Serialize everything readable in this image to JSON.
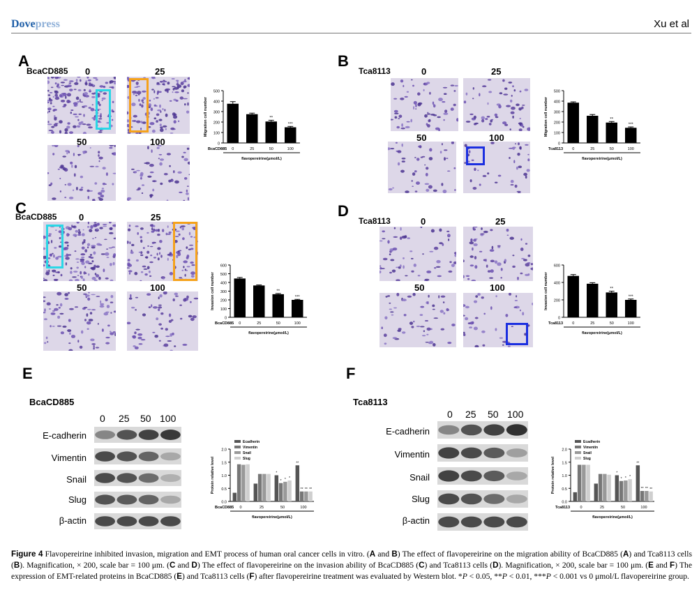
{
  "header": {
    "logo_bold": "Dove",
    "logo_light": "press",
    "author": "Xu et al"
  },
  "panels": [
    {
      "letter": "A",
      "cell_line": "BcaCD885",
      "doses": [
        "0",
        "25",
        "50",
        "100"
      ]
    },
    {
      "letter": "B",
      "cell_line": "Tca8113",
      "doses": [
        "0",
        "25",
        "50",
        "100"
      ]
    },
    {
      "letter": "C",
      "cell_line": "BcaCD885",
      "doses": [
        "0",
        "25",
        "50",
        "100"
      ]
    },
    {
      "letter": "D",
      "cell_line": "Tca8113",
      "doses": [
        "0",
        "25",
        "50",
        "100"
      ]
    },
    {
      "letter": "E",
      "cell_line": "BcaCD885"
    },
    {
      "letter": "F",
      "cell_line": "Tca8113"
    }
  ],
  "western": {
    "doses": [
      "0",
      "25",
      "50",
      "100"
    ],
    "proteins": [
      "E-cadherin",
      "Vimentin",
      "Snail",
      "Slug",
      "β-actin"
    ],
    "intensity_E": [
      [
        0.45,
        0.75,
        0.85,
        0.9
      ],
      [
        0.8,
        0.75,
        0.65,
        0.25
      ],
      [
        0.8,
        0.75,
        0.6,
        0.2
      ],
      [
        0.75,
        0.7,
        0.65,
        0.25
      ],
      [
        0.8,
        0.8,
        0.8,
        0.8
      ]
    ],
    "intensity_F": [
      [
        0.45,
        0.75,
        0.85,
        0.95
      ],
      [
        0.85,
        0.8,
        0.7,
        0.3
      ],
      [
        0.85,
        0.8,
        0.7,
        0.25
      ],
      [
        0.8,
        0.75,
        0.6,
        0.25
      ],
      [
        0.8,
        0.8,
        0.8,
        0.8
      ]
    ]
  },
  "chart_data": [
    {
      "panel": "A",
      "type": "bar",
      "ylabel": "Migration cell number",
      "xlabel": "flavopereirine(μmol/L)",
      "row_label": "BcaCD885",
      "categories": [
        "0",
        "25",
        "50",
        "100"
      ],
      "values": [
        375,
        275,
        205,
        150
      ],
      "errors": [
        20,
        10,
        12,
        8
      ],
      "sig": [
        "",
        "",
        "**",
        "***"
      ],
      "ylim": [
        0,
        500
      ],
      "yticks": [
        0,
        100,
        200,
        300,
        400,
        500
      ]
    },
    {
      "panel": "B",
      "type": "bar",
      "ylabel": "Migration cell number",
      "xlabel": "flavopereirine(μmol/L)",
      "row_label": "Tca8113",
      "categories": [
        "0",
        "25",
        "50",
        "100"
      ],
      "values": [
        385,
        260,
        195,
        145
      ],
      "errors": [
        8,
        12,
        10,
        8
      ],
      "sig": [
        "",
        "",
        "**",
        "***"
      ],
      "ylim": [
        0,
        500
      ],
      "yticks": [
        0,
        100,
        200,
        300,
        400,
        500
      ]
    },
    {
      "panel": "C",
      "type": "bar",
      "ylabel": "Invasion cell number",
      "xlabel": "flavopereirine(μmol/L)",
      "row_label": "BcaCD885",
      "categories": [
        "0",
        "25",
        "50",
        "100"
      ],
      "values": [
        445,
        365,
        265,
        200
      ],
      "errors": [
        12,
        6,
        8,
        6
      ],
      "sig": [
        "",
        "",
        "**",
        "***"
      ],
      "ylim": [
        0,
        600
      ],
      "yticks": [
        0,
        100,
        200,
        300,
        400,
        500,
        600
      ]
    },
    {
      "panel": "D",
      "type": "bar",
      "ylabel": "Invasion cell number",
      "xlabel": "flavopereirine(μmol/L)",
      "row_label": "Tca8113",
      "categories": [
        "0",
        "25",
        "50",
        "100"
      ],
      "values": [
        475,
        385,
        285,
        200
      ],
      "errors": [
        15,
        12,
        15,
        10
      ],
      "sig": [
        "",
        "",
        "**",
        "***"
      ],
      "ylim": [
        0,
        600
      ],
      "yticks": [
        0,
        200,
        400,
        600
      ]
    },
    {
      "panel": "E",
      "type": "bar",
      "ylabel": "Protein relative level",
      "xlabel": "flavopereirine(μmol/L)",
      "row_label": "BcaCD885",
      "categories": [
        "0",
        "25",
        "50",
        "100"
      ],
      "ylim": [
        0,
        2.0
      ],
      "yticks": [
        0,
        0.5,
        1.0,
        1.5,
        2.0
      ],
      "series": [
        {
          "name": "Ecadherin",
          "values": [
            0.33,
            0.68,
            1.0,
            1.38
          ],
          "sig": [
            "",
            "",
            "*",
            "**"
          ]
        },
        {
          "name": "Vimentin",
          "values": [
            1.42,
            1.05,
            0.7,
            0.38
          ],
          "sig": [
            "",
            "",
            "*",
            "**"
          ]
        },
        {
          "name": "Snail",
          "values": [
            1.4,
            1.05,
            0.75,
            0.38
          ],
          "sig": [
            "",
            "",
            "*",
            "**"
          ]
        },
        {
          "name": "Slug",
          "values": [
            1.42,
            1.05,
            0.8,
            0.38
          ],
          "sig": [
            "",
            "",
            "*",
            "**"
          ]
        }
      ]
    },
    {
      "panel": "F",
      "type": "bar",
      "ylabel": "Protein relative level",
      "xlabel": "flavopereirine(μmol/L)",
      "row_label": "Tca8113",
      "categories": [
        "0",
        "25",
        "50",
        "100"
      ],
      "ylim": [
        0,
        2.0
      ],
      "yticks": [
        0,
        0.5,
        1.0,
        1.5,
        2.0
      ],
      "series": [
        {
          "name": "Ecadherin",
          "values": [
            0.35,
            0.68,
            1.0,
            1.38
          ],
          "sig": [
            "",
            "",
            "*",
            "**"
          ]
        },
        {
          "name": "Vimentin",
          "values": [
            1.4,
            1.05,
            0.78,
            0.4
          ],
          "sig": [
            "",
            "",
            "*",
            "**"
          ]
        },
        {
          "name": "Snail",
          "values": [
            1.4,
            1.05,
            0.8,
            0.4
          ],
          "sig": [
            "",
            "",
            "*",
            "**"
          ]
        },
        {
          "name": "Slug",
          "values": [
            1.4,
            1.02,
            0.85,
            0.38
          ],
          "sig": [
            "",
            "",
            "*",
            "**"
          ]
        }
      ]
    }
  ],
  "caption": {
    "label": "Figure 4",
    "t1": " Flavopereirine inhibited invasion, migration and EMT process of human oral cancer cells in vitro. (",
    "A": "A",
    "and1": " and ",
    "B": "B",
    "t2": ") The effect of flavopereirine on the migration ability of BcaCD885 (",
    "t3": ") and Tca8113 cells (",
    "t4": "). Magnification, × 200, scale bar = 100 μm. (",
    "C": "C",
    "and2": " and ",
    "D": "D",
    "t5": ") The effect of flavopereirine on the invasion ability of BcaCD885 (",
    "t6": ") and Tca8113 cells (",
    "t7": "). Magnification, × 200, scale bar = 100 μm. (",
    "E": "E",
    "and3": " and ",
    "F": "F",
    "t8": ") The expression of EMT-related proteins in BcaCD885 (",
    "t9": ") and Tca8113 cells (",
    "t10": ") after flavopereirine treatment was evaluated by Western blot. *",
    "P": "P",
    "t11": " < 0.05, **",
    "t12": " < 0.01, ***",
    "t13": " < 0.001 vs 0 μmol/L flavopereirine group."
  }
}
